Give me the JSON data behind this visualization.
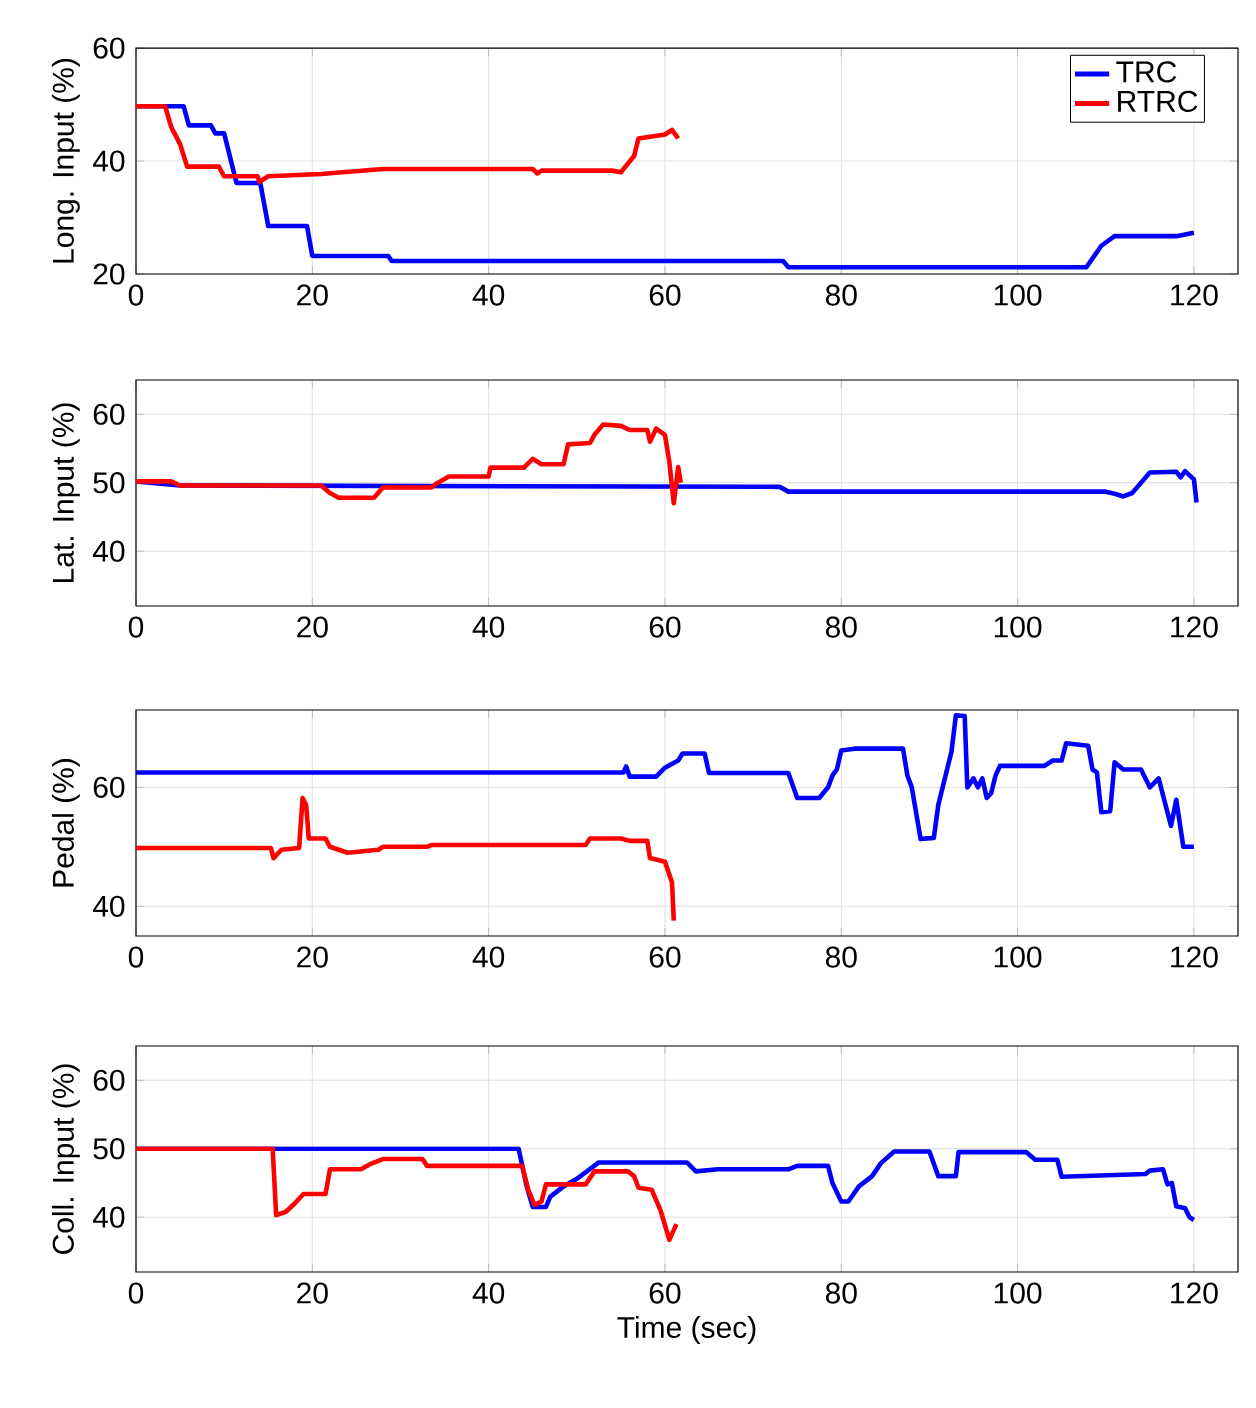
{
  "chart_data": [
    {
      "type": "line",
      "ylabel": "Long. Input (%)",
      "xlim": [
        0,
        125
      ],
      "ylim": [
        20,
        60
      ],
      "xticks": [
        0,
        20,
        40,
        60,
        80,
        100,
        120
      ],
      "yticks": [
        20,
        40,
        60
      ],
      "grid": true,
      "legend": "top right",
      "series": [
        {
          "name": "TRC",
          "color": "#0000ff",
          "x": [
            0,
            5.4,
            6,
            8.5,
            9,
            10,
            11.4,
            14.1,
            15,
            19.4,
            20,
            28.6,
            29,
            73.4,
            74,
            107.8,
            109.5,
            111,
            118,
            120
          ],
          "values": [
            49.7,
            49.7,
            46.3,
            46.3,
            44.9,
            44.9,
            36.1,
            36.1,
            28.5,
            28.5,
            23.2,
            23.2,
            22.3,
            22.3,
            21.2,
            21.2,
            25,
            26.7,
            26.7,
            27.3
          ]
        },
        {
          "name": "RTRC",
          "color": "#ff0000",
          "x": [
            0,
            3.3,
            4,
            5,
            5.8,
            9.4,
            10,
            13.8,
            14,
            15,
            21,
            28,
            45,
            45.5,
            46,
            54,
            55,
            56.5,
            57,
            60,
            60.8,
            61.5
          ],
          "values": [
            49.7,
            49.7,
            46,
            43,
            39,
            39,
            37.3,
            37.3,
            36.3,
            37.3,
            37.7,
            38.6,
            38.6,
            37.8,
            38.3,
            38.3,
            38,
            40.9,
            44,
            44.7,
            45.5,
            44
          ]
        }
      ]
    },
    {
      "type": "line",
      "ylabel": "Lat. Input (%)",
      "xlim": [
        0,
        125
      ],
      "ylim": [
        32,
        65
      ],
      "xticks": [
        0,
        20,
        40,
        60,
        80,
        100,
        120
      ],
      "yticks": [
        40,
        50,
        60
      ],
      "grid": true,
      "series": [
        {
          "color": "#0000ff",
          "x": [
            0,
            5,
            73,
            74,
            110,
            111,
            112,
            113,
            114,
            115,
            118,
            118.5,
            119,
            120,
            120.3
          ],
          "values": [
            50.2,
            49.6,
            49.4,
            48.7,
            48.7,
            48.4,
            48,
            48.5,
            50,
            51.5,
            51.6,
            50.8,
            51.7,
            50.5,
            47.1
          ]
        },
        {
          "color": "#ff0000",
          "x": [
            0,
            4,
            5,
            21,
            22,
            23,
            27,
            28,
            33.5,
            34,
            35.5,
            40,
            40.2,
            44,
            45,
            46,
            48.5,
            49,
            51.5,
            52,
            53,
            55,
            56,
            58,
            58.3,
            59,
            60,
            60.5,
            61,
            61.5,
            61.8
          ],
          "values": [
            50.2,
            50.2,
            49.6,
            49.6,
            48.5,
            47.8,
            47.8,
            49.3,
            49.3,
            49.8,
            50.9,
            50.9,
            52.2,
            52.2,
            53.5,
            52.7,
            52.7,
            55.6,
            55.8,
            57,
            58.5,
            58.3,
            57.7,
            57.7,
            56,
            57.9,
            57,
            53,
            47,
            52.3,
            50
          ]
        }
      ]
    },
    {
      "type": "line",
      "ylabel": "Pedal (%)",
      "xlim": [
        0,
        125
      ],
      "ylim": [
        35,
        73
      ],
      "xticks": [
        0,
        20,
        40,
        60,
        80,
        100,
        120
      ],
      "yticks": [
        40,
        60
      ],
      "grid": true,
      "series": [
        {
          "color": "#0000ff",
          "x": [
            0,
            55.3,
            55.6,
            56,
            59,
            60,
            61.5,
            62,
            64.5,
            65,
            74,
            75,
            77.5,
            78.5,
            79,
            79.5,
            80,
            81.5,
            87,
            87.5,
            88,
            89,
            90.5,
            91,
            92.5,
            93,
            94,
            94.3,
            95,
            95.5,
            96,
            96.5,
            97,
            97.5,
            98,
            103,
            104,
            105,
            105.5,
            108,
            108.5,
            109,
            109.5,
            110.5,
            111,
            112,
            114,
            115,
            116,
            117.4,
            118,
            118.8,
            120
          ],
          "values": [
            62.5,
            62.5,
            63.5,
            61.8,
            61.8,
            63.3,
            64.5,
            65.7,
            65.7,
            62.4,
            62.4,
            58.2,
            58.2,
            60,
            62,
            63,
            66.2,
            66.5,
            66.5,
            62,
            60,
            51.3,
            51.5,
            57,
            66,
            72.1,
            72,
            60,
            61.5,
            60,
            61.5,
            58.2,
            59,
            62,
            63.6,
            63.6,
            64.5,
            64.5,
            67.4,
            67,
            63,
            62.5,
            55.8,
            56,
            64.2,
            63,
            63,
            60,
            61.5,
            53.5,
            57.9,
            50,
            50
          ]
        },
        {
          "color": "#ff0000",
          "x": [
            0,
            15.3,
            15.6,
            16.5,
            18.5,
            18.9,
            19.3,
            19.6,
            21.5,
            22,
            24,
            27.5,
            28,
            33,
            33.5,
            51,
            51.5,
            55,
            56,
            58,
            58.3,
            60,
            60.8,
            61
          ],
          "values": [
            49.8,
            49.8,
            48.1,
            49.5,
            49.8,
            58.2,
            57,
            51.4,
            51.4,
            50,
            49,
            49.5,
            50,
            50,
            50.3,
            50.3,
            51.4,
            51.4,
            51,
            51,
            48.1,
            47.5,
            44,
            37.6
          ]
        }
      ]
    },
    {
      "type": "line",
      "ylabel": "Coll. Input (%)",
      "xlabel": "Time (sec)",
      "xlim": [
        0,
        125
      ],
      "ylim": [
        32,
        65
      ],
      "xticks": [
        0,
        20,
        40,
        60,
        80,
        100,
        120
      ],
      "yticks": [
        40,
        50,
        60
      ],
      "grid": true,
      "series": [
        {
          "color": "#0000ff",
          "x": [
            0,
            43.4,
            44.3,
            45,
            46.5,
            47,
            48.5,
            50,
            52.5,
            62.5,
            63.5,
            66,
            74,
            75,
            78.5,
            79,
            80,
            80.8,
            82,
            83.5,
            84.5,
            86,
            90,
            91,
            93,
            93.3,
            101,
            102,
            104.5,
            105,
            114.5,
            115,
            116.5,
            117,
            117.5,
            118,
            119,
            119.5,
            120
          ],
          "values": [
            50,
            50,
            44.6,
            41.5,
            41.5,
            43,
            44.5,
            45.6,
            48,
            48,
            46.7,
            47,
            47,
            47.5,
            47.5,
            45,
            42.3,
            42.3,
            44.5,
            46,
            47.9,
            49.6,
            49.6,
            46,
            46,
            49.5,
            49.5,
            48.4,
            48.4,
            45.9,
            46.3,
            46.8,
            47,
            44.8,
            45,
            41.6,
            41.3,
            40,
            39.6
          ]
        },
        {
          "color": "#ff0000",
          "x": [
            0,
            15.5,
            15.9,
            17,
            18,
            19,
            21.5,
            22,
            25.5,
            26.5,
            28,
            32.5,
            33,
            43.8,
            44.5,
            45.2,
            46,
            46.5,
            51,
            52,
            55.8,
            56.5,
            57,
            58.5,
            59.5,
            60.5,
            61.3
          ],
          "values": [
            50,
            50,
            40.3,
            40.8,
            42,
            43.4,
            43.4,
            47,
            47,
            47.7,
            48.5,
            48.5,
            47.5,
            47.5,
            44,
            41.8,
            42.3,
            44.8,
            44.8,
            46.7,
            46.7,
            46,
            44.3,
            44,
            41,
            36.7,
            39
          ]
        }
      ]
    }
  ]
}
